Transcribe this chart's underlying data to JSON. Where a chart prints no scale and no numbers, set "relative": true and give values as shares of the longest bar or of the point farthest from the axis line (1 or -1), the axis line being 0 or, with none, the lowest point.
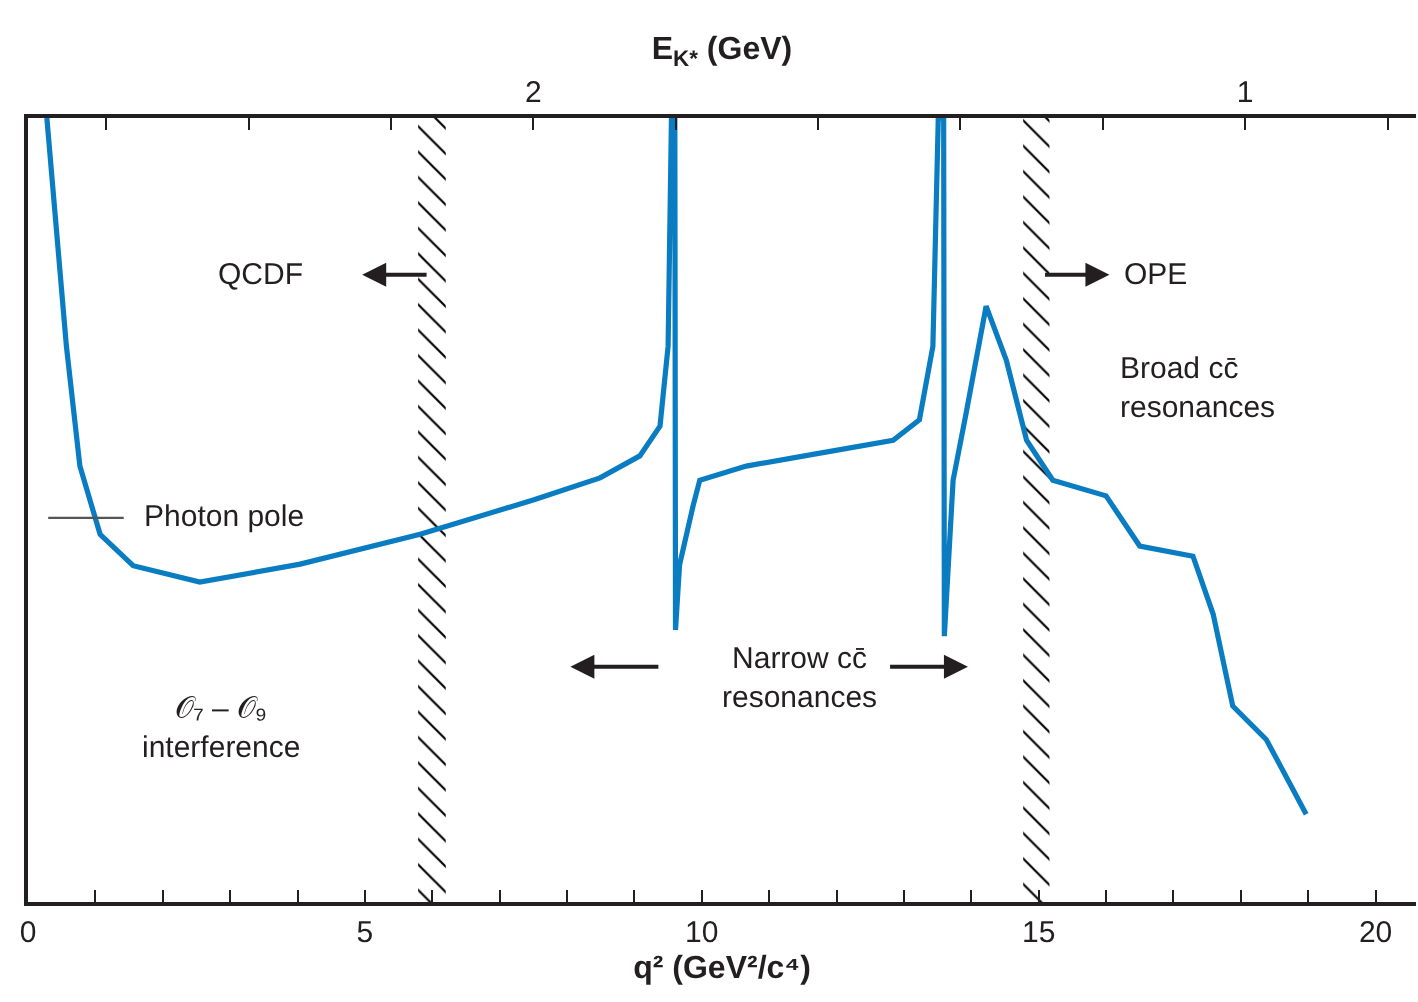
{
  "chart_data": {
    "type": "line",
    "relative": true,
    "xlabel": "q² (GeV²/c⁴)",
    "x2label": "E$_{K*}$ (GeV)",
    "xlim": [
      0,
      20.6
    ],
    "xticks": [
      0,
      {
        "value": 1,
        "label": null
      },
      {
        "value": 2,
        "label": null
      },
      {
        "value": 3,
        "label": null
      },
      {
        "value": 4,
        "label": null
      },
      5,
      {
        "value": 6,
        "label": null
      },
      {
        "value": 7,
        "label": null
      },
      {
        "value": 8,
        "label": null
      },
      {
        "value": 9,
        "label": null
      },
      10,
      {
        "value": 11,
        "label": null
      },
      {
        "value": 12,
        "label": null
      },
      {
        "value": 13,
        "label": null
      },
      {
        "value": 14,
        "label": null
      },
      15,
      {
        "value": 16,
        "label": null
      },
      {
        "value": 17,
        "label": null
      },
      {
        "value": 18,
        "label": null
      },
      {
        "value": 19,
        "label": null
      },
      20
    ],
    "x2lim": [
      2.71,
      0.76
    ],
    "x2ticks": [
      {
        "value": 2.6,
        "label": null
      },
      {
        "value": 2.4,
        "label": null
      },
      {
        "value": 2.2,
        "label": null
      },
      2,
      {
        "value": 1.8,
        "label": null
      },
      {
        "value": 1.6,
        "label": null
      },
      {
        "value": 1.4,
        "label": null
      },
      {
        "value": 1.2,
        "label": null
      },
      1,
      {
        "value": 0.8,
        "label": null
      }
    ],
    "series": [
      {
        "color": "#0a7dc2",
        "x": [
          0.28,
          0.57,
          0.77,
          1.07,
          1.56,
          2.55,
          4.04,
          5.82,
          7.51,
          8.49,
          9.08,
          9.38,
          9.5,
          9.55,
          9.6,
          9.61,
          9.67,
          9.87,
          9.97,
          10.66,
          11.65,
          12.84,
          13.23,
          13.43,
          13.51,
          13.59,
          13.6,
          13.73,
          13.92,
          14.22,
          14.52,
          14.82,
          15.21,
          16.0,
          16.5,
          17.29,
          17.59,
          17.88,
          18.38,
          18.97
        ],
        "values": [
          1.0,
          0.709,
          0.556,
          0.469,
          0.429,
          0.408,
          0.431,
          0.469,
          0.513,
          0.541,
          0.569,
          0.607,
          0.709,
          1.0,
          1.0,
          0.347,
          0.43,
          0.505,
          0.538,
          0.556,
          0.571,
          0.589,
          0.615,
          0.709,
          1.0,
          1.0,
          0.339,
          0.538,
          0.622,
          0.76,
          0.691,
          0.589,
          0.538,
          0.518,
          0.454,
          0.441,
          0.367,
          0.25,
          0.207,
          0.112
        ]
      }
    ],
    "bands": [
      {
        "axis": "x",
        "from": 5.79,
        "to": 6.2,
        "color": "#000000"
      },
      {
        "axis": "x",
        "from": 14.77,
        "to": 15.16,
        "color": "#000000"
      }
    ],
    "annotations": [
      "QCDF",
      "OPE",
      "Photon pole",
      "Narrow cc̄\nresonances",
      "Broad cc̄\nresonances",
      "𝒪₇ – 𝒪₉\ninterference"
    ]
  }
}
